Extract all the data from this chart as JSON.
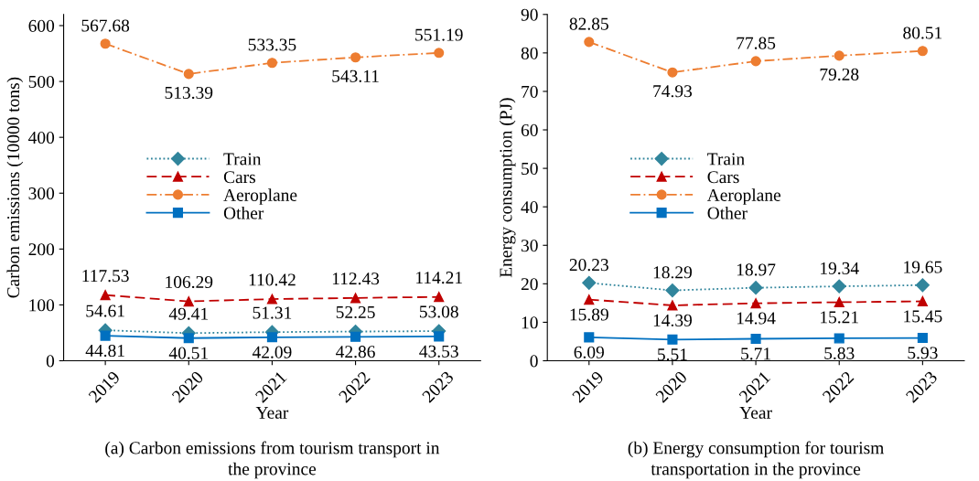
{
  "chart_data": [
    {
      "type": "line",
      "categories": [
        "2019",
        "2020",
        "2021",
        "2022",
        "2023"
      ],
      "xlabel": "Year",
      "ylabel": "Carbon emissions (10000 tons)",
      "ylim": [
        0,
        620
      ],
      "yticks": [
        0,
        100,
        200,
        300,
        400,
        500,
        600
      ],
      "legend": "center",
      "grid": false,
      "data_labels": true,
      "annotations": [
        "(a) Carbon emissions from tourism transport in\nthe province"
      ],
      "series": [
        {
          "name": "Train",
          "color": "#31859c",
          "marker": "diamond",
          "line_style": "dotted",
          "values": [
            54.61,
            49.41,
            51.31,
            52.25,
            53.08
          ]
        },
        {
          "name": "Cars",
          "color": "#c00000",
          "marker": "triangle",
          "line_style": "dashed",
          "values": [
            117.53,
            106.29,
            110.42,
            112.43,
            114.21
          ]
        },
        {
          "name": "Aeroplane",
          "color": "#ed7d31",
          "marker": "circle",
          "line_style": "dashdot",
          "values": [
            567.68,
            513.39,
            533.35,
            543.11,
            551.19
          ]
        },
        {
          "name": "Other",
          "color": "#0070c0",
          "marker": "square",
          "line_style": "solid",
          "values": [
            44.81,
            40.51,
            42.09,
            42.86,
            43.53
          ]
        }
      ]
    },
    {
      "type": "line",
      "categories": [
        "2019",
        "2020",
        "2021",
        "2022",
        "2023"
      ],
      "xlabel": "Year",
      "ylabel": "Energy consumption (PJ)",
      "ylim": [
        0,
        90
      ],
      "yticks": [
        0,
        10,
        20,
        30,
        40,
        50,
        60,
        70,
        80,
        90
      ],
      "legend": "center",
      "grid": false,
      "data_labels": true,
      "annotations": [
        "(b) Energy consumption for tourism\ntransportation in the province"
      ],
      "series": [
        {
          "name": "Train",
          "color": "#31859c",
          "marker": "diamond",
          "line_style": "dotted",
          "values": [
            20.23,
            18.29,
            18.97,
            19.34,
            19.65
          ]
        },
        {
          "name": "Cars",
          "color": "#c00000",
          "marker": "triangle",
          "line_style": "dashed",
          "values": [
            15.89,
            14.39,
            14.94,
            15.21,
            15.45
          ]
        },
        {
          "name": "Aeroplane",
          "color": "#ed7d31",
          "marker": "circle",
          "line_style": "dashdot",
          "values": [
            82.85,
            74.93,
            77.85,
            79.28,
            80.51
          ]
        },
        {
          "name": "Other",
          "color": "#0070c0",
          "marker": "square",
          "line_style": "solid",
          "values": [
            6.09,
            5.51,
            5.71,
            5.83,
            5.93
          ]
        }
      ]
    }
  ]
}
